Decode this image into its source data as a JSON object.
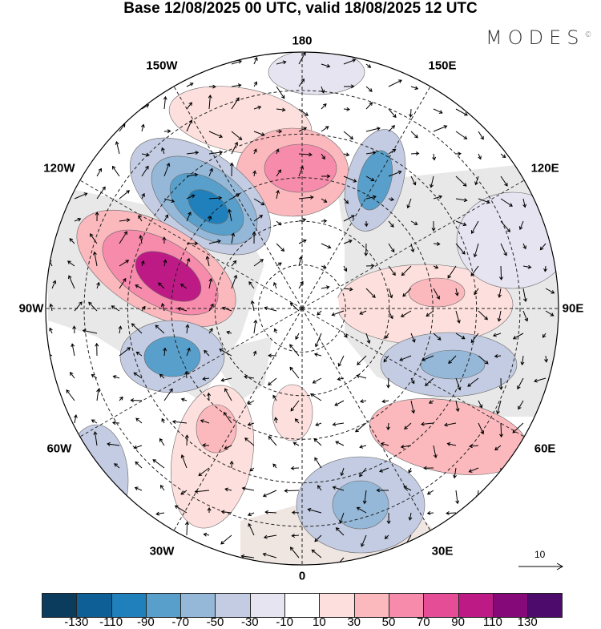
{
  "title": "Base 12/08/2025 00 UTC, valid 18/08/2025 12 UTC",
  "logo": "MODES",
  "logo_mark": "©",
  "longitude_labels": [
    {
      "text": "180",
      "lon": 180
    },
    {
      "text": "150E",
      "lon": 150
    },
    {
      "text": "120E",
      "lon": 120
    },
    {
      "text": "90E",
      "lon": 90
    },
    {
      "text": "60E",
      "lon": 60
    },
    {
      "text": "30E",
      "lon": 30
    },
    {
      "text": "0",
      "lon": 0
    },
    {
      "text": "30W",
      "lon": -30
    },
    {
      "text": "60W",
      "lon": -60
    },
    {
      "text": "90W",
      "lon": -90
    },
    {
      "text": "120W",
      "lon": -120
    },
    {
      "text": "150W",
      "lon": -150
    }
  ],
  "vector_reference": "10",
  "colorbar": {
    "colors": [
      "#0b3c5d",
      "#0d5f96",
      "#1f80bb",
      "#58a0cb",
      "#95b8d8",
      "#c3cce2",
      "#e6e4f0",
      "#ffffff",
      "#fde0dd",
      "#fbb9bd",
      "#f78bac",
      "#e64d97",
      "#be1a85",
      "#86097a",
      "#4d0c6b"
    ],
    "labels": [
      "-130",
      "-110",
      "-90",
      "-70",
      "-50",
      "-30",
      "-10",
      "10",
      "30",
      "50",
      "70",
      "90",
      "110",
      "130"
    ]
  }
}
